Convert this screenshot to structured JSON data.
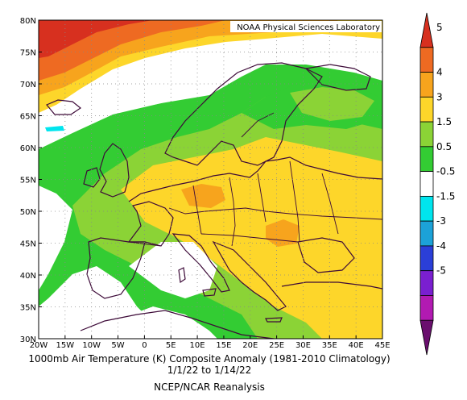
{
  "credit": "NOAA Physical Sciences Laboratory",
  "caption": {
    "line1": "1000mb Air Temperature (K) Composite Anomaly (1981-2010 Climatology)",
    "line2": "1/1/22  to 1/14/22",
    "line3": "NCEP/NCAR Reanalysis"
  },
  "map": {
    "lon_range": [
      -20,
      45
    ],
    "lat_range": [
      30,
      80
    ],
    "lon_ticks": [
      "20W",
      "15W",
      "10W",
      "5W",
      "0",
      "5E",
      "10E",
      "15E",
      "20E",
      "25E",
      "30E",
      "35E",
      "40E",
      "45E"
    ],
    "lat_ticks": [
      "80N",
      "75N",
      "70N",
      "65N",
      "60N",
      "55N",
      "50N",
      "45N",
      "40N",
      "35N",
      "30N"
    ],
    "gridlines": "dotted"
  },
  "colorbar": {
    "labels": [
      "5",
      "4",
      "3",
      "1.5",
      "0.5",
      "-0.5",
      "-1.5",
      "-3",
      "-4",
      "-5"
    ],
    "colors": [
      "#d7301f",
      "#ee6a22",
      "#f7a41d",
      "#fdd62a",
      "#8bd336",
      "#33cc33",
      "#ffffff",
      "#00e5ee",
      "#1ca2d8",
      "#2b3fd8",
      "#7a1fd0",
      "#b21ab2",
      "#6a0f6e"
    ]
  },
  "colors": {
    "land_line": "#3d0a38",
    "ocean_bg": "#ffffff"
  }
}
